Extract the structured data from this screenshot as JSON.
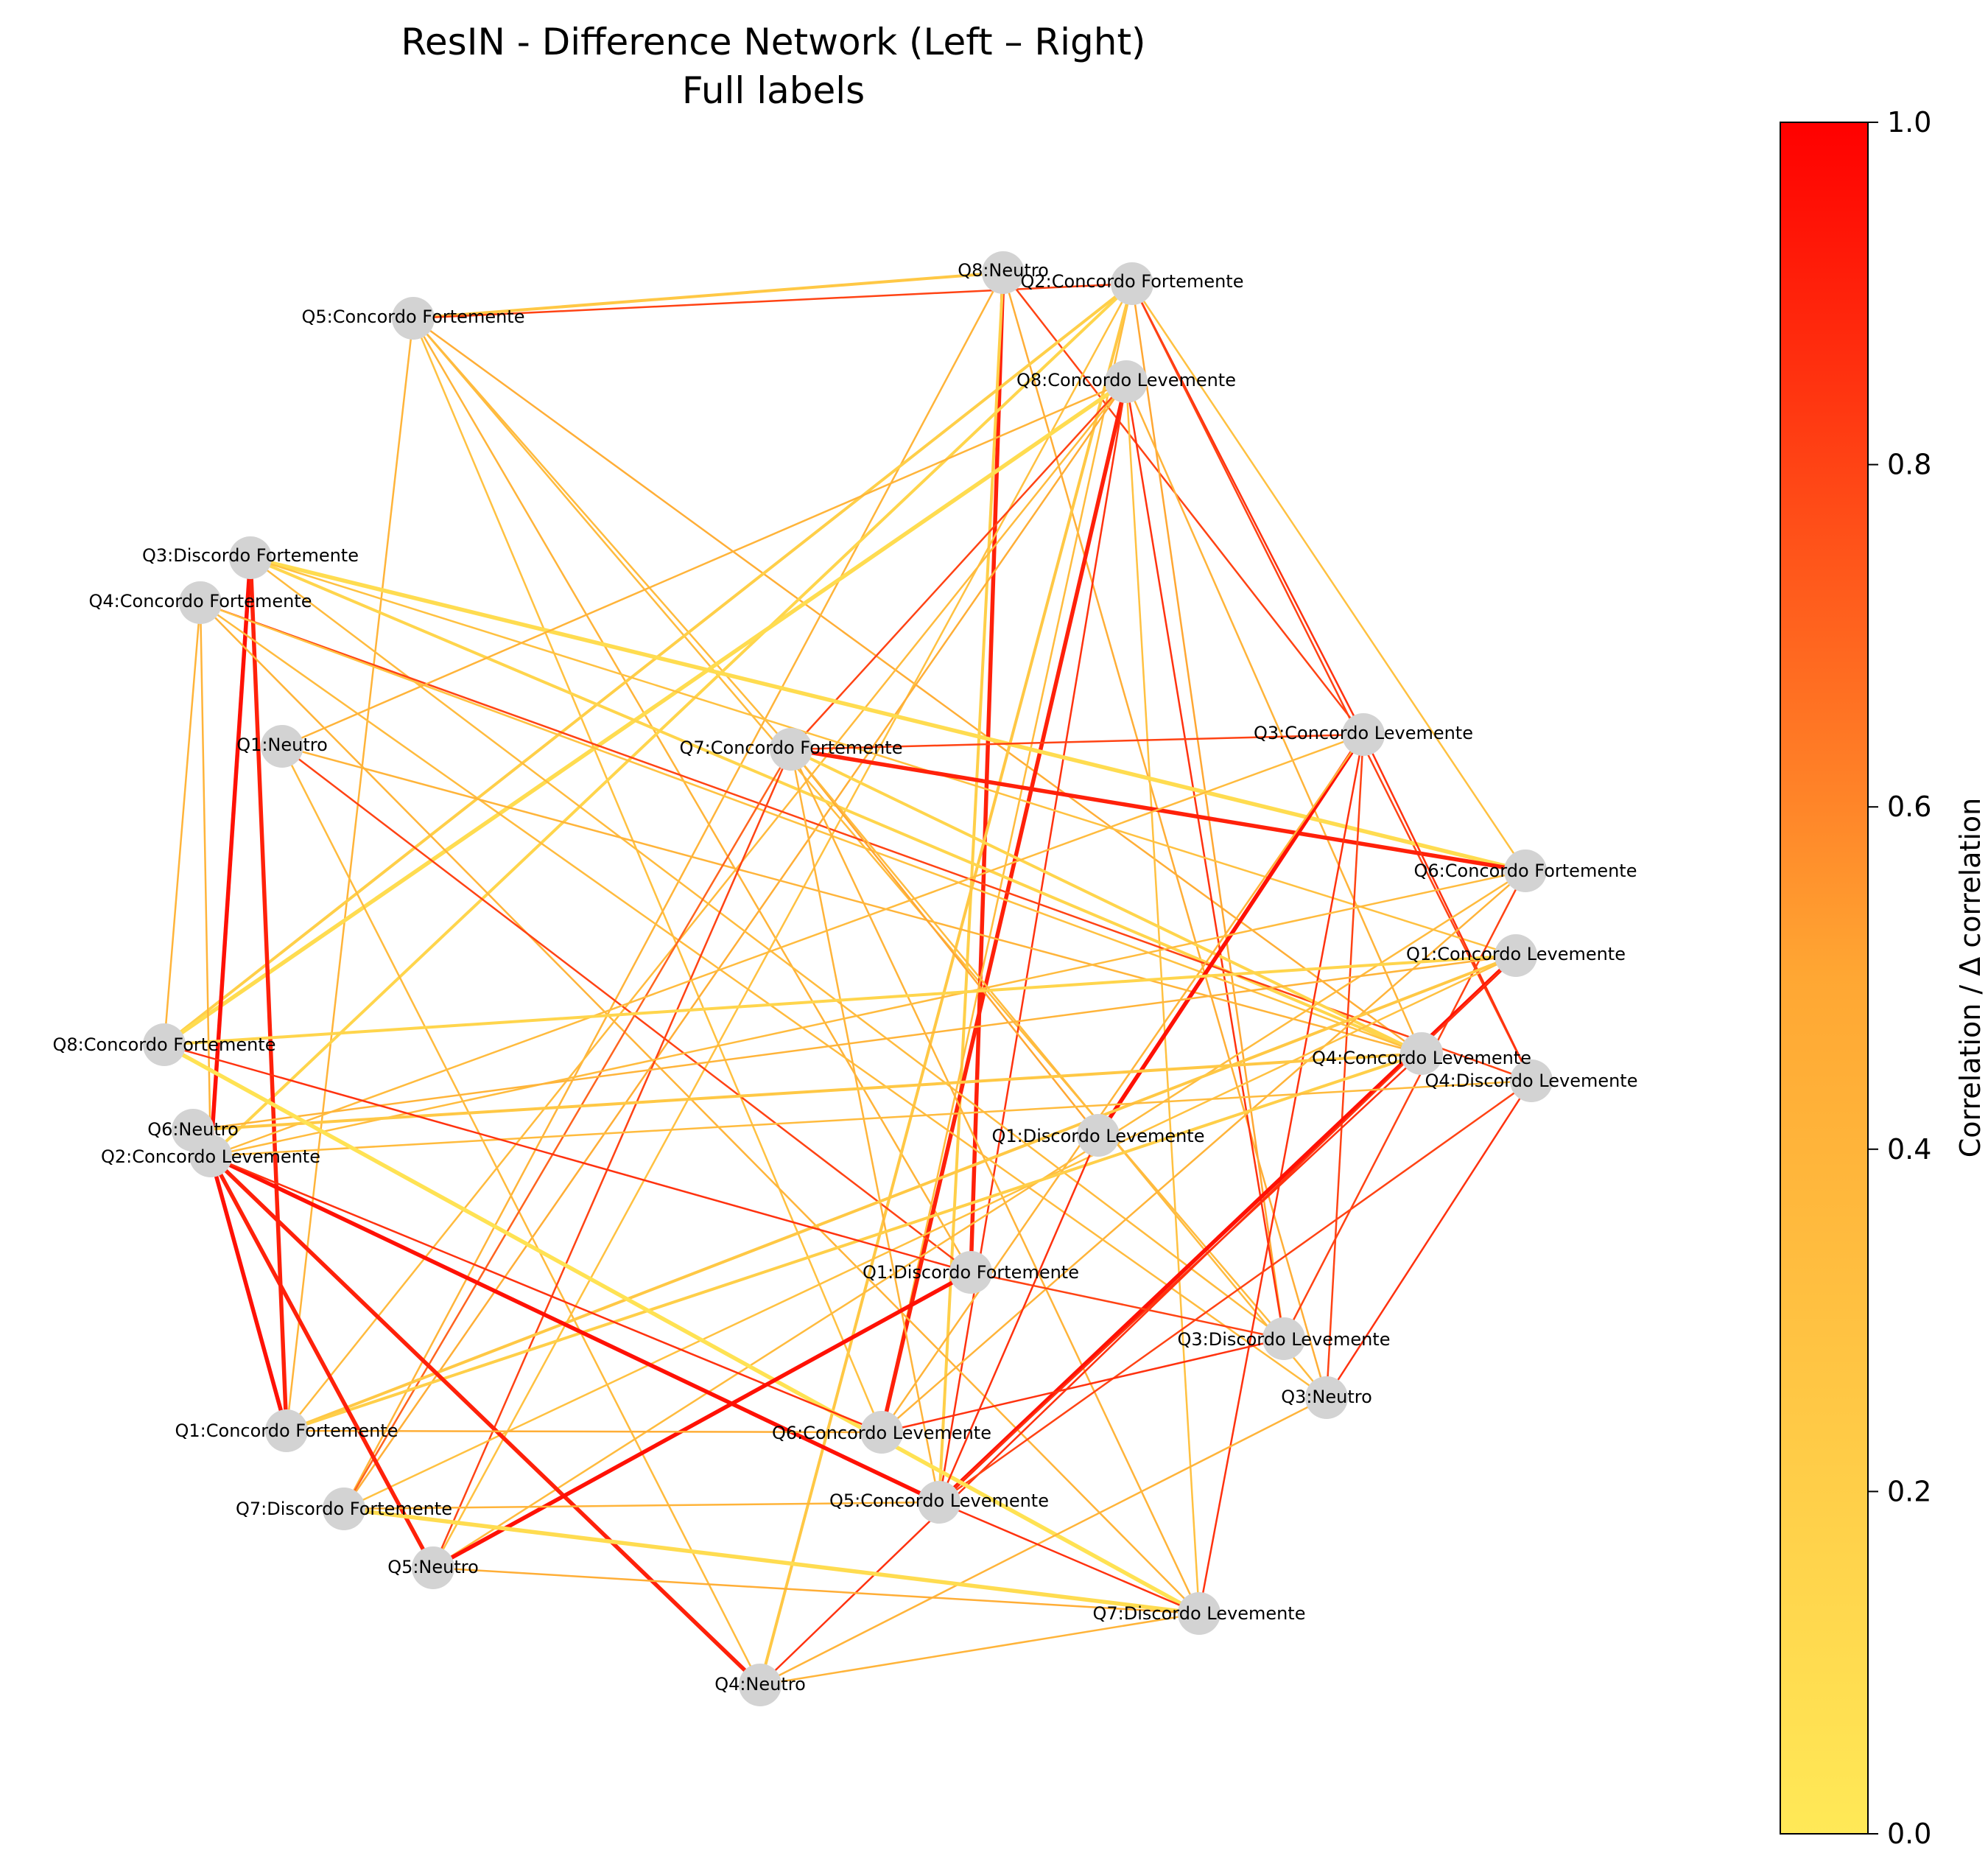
{
  "title_line1": "ResIN - Difference Network (Left – Right)",
  "title_line2": "Full labels",
  "colorbar": {
    "label": "Correlation / Δ correlation",
    "ticks": [
      "0.0",
      "0.2",
      "0.4",
      "0.6",
      "0.8",
      "1.0"
    ],
    "colors": [
      "#ffe957",
      "#ffa733",
      "#ff0000"
    ]
  },
  "chart_data": {
    "type": "network",
    "nodes": [
      {
        "id": "Q8:Neutro"
      },
      {
        "id": "Q2:Concordo Fortemente"
      },
      {
        "id": "Q5:Concordo Fortemente"
      },
      {
        "id": "Q8:Concordo Levemente"
      },
      {
        "id": "Q3:Discordo Fortemente"
      },
      {
        "id": "Q4:Concordo Fortemente"
      },
      {
        "id": "Q1:Neutro"
      },
      {
        "id": "Q7:Concordo Fortemente"
      },
      {
        "id": "Q3:Concordo Levemente"
      },
      {
        "id": "Q6:Concordo Fortemente"
      },
      {
        "id": "Q1:Concordo Levemente"
      },
      {
        "id": "Q4:Concordo Levemente"
      },
      {
        "id": "Q4:Discordo Levemente"
      },
      {
        "id": "Q8:Concordo Fortemente"
      },
      {
        "id": "Q6:Neutro"
      },
      {
        "id": "Q2:Concordo Levemente"
      },
      {
        "id": "Q1:Discordo Levemente"
      },
      {
        "id": "Q1:Discordo Fortemente"
      },
      {
        "id": "Q3:Discordo Levemente"
      },
      {
        "id": "Q3:Neutro"
      },
      {
        "id": "Q1:Concordo Fortemente"
      },
      {
        "id": "Q6:Concordo Levemente"
      },
      {
        "id": "Q7:Discordo Fortemente"
      },
      {
        "id": "Q5:Concordo Levemente"
      },
      {
        "id": "Q5:Neutro"
      },
      {
        "id": "Q7:Discordo Levemente"
      },
      {
        "id": "Q4:Neutro"
      }
    ],
    "edges": [
      {
        "source": "Q5:Concordo Fortemente",
        "target": "Q8:Neutro",
        "weight": 0.25
      },
      {
        "source": "Q5:Concordo Fortemente",
        "target": "Q2:Concordo Fortemente",
        "weight": 0.8
      },
      {
        "source": "Q5:Concordo Fortemente",
        "target": "Q7:Concordo Fortemente",
        "weight": 0.35
      },
      {
        "source": "Q5:Concordo Fortemente",
        "target": "Q1:Concordo Fortemente",
        "weight": 0.4
      },
      {
        "source": "Q5:Concordo Fortemente",
        "target": "Q3:Discordo Levemente",
        "weight": 0.35
      },
      {
        "source": "Q5:Concordo Fortemente",
        "target": "Q1:Discordo Fortemente",
        "weight": 0.4
      },
      {
        "source": "Q5:Concordo Fortemente",
        "target": "Q6:Concordo Levemente",
        "weight": 0.3
      },
      {
        "source": "Q5:Concordo Fortemente",
        "target": "Q4:Concordo Levemente",
        "weight": 0.45
      },
      {
        "source": "Q8:Neutro",
        "target": "Q1:Discordo Fortemente",
        "weight": 0.9
      },
      {
        "source": "Q8:Neutro",
        "target": "Q3:Concordo Levemente",
        "weight": 0.8
      },
      {
        "source": "Q8:Neutro",
        "target": "Q7:Discordo Fortemente",
        "weight": 0.4
      },
      {
        "source": "Q8:Neutro",
        "target": "Q5:Concordo Levemente",
        "weight": 0.2
      },
      {
        "source": "Q8:Neutro",
        "target": "Q3:Neutro",
        "weight": 0.45
      },
      {
        "source": "Q2:Concordo Fortemente",
        "target": "Q2:Concordo Levemente",
        "weight": 0.15
      },
      {
        "source": "Q2:Concordo Fortemente",
        "target": "Q8:Concordo Fortemente",
        "weight": 0.2
      },
      {
        "source": "Q2:Concordo Fortemente",
        "target": "Q3:Concordo Levemente",
        "weight": 0.85
      },
      {
        "source": "Q2:Concordo Fortemente",
        "target": "Q6:Concordo Fortemente",
        "weight": 0.3
      },
      {
        "source": "Q2:Concordo Fortemente",
        "target": "Q4:Discordo Levemente",
        "weight": 0.8
      },
      {
        "source": "Q2:Concordo Fortemente",
        "target": "Q3:Discordo Levemente",
        "weight": 0.5
      },
      {
        "source": "Q2:Concordo Fortemente",
        "target": "Q6:Concordo Levemente",
        "weight": 0.35
      },
      {
        "source": "Q2:Concordo Fortemente",
        "target": "Q5:Neutro",
        "weight": 0.3
      },
      {
        "source": "Q2:Concordo Fortemente",
        "target": "Q4:Neutro",
        "weight": 0.25
      },
      {
        "source": "Q8:Concordo Levemente",
        "target": "Q8:Concordo Fortemente",
        "weight": 0.1
      },
      {
        "source": "Q8:Concordo Levemente",
        "target": "Q6:Concordo Levemente",
        "weight": 0.9
      },
      {
        "source": "Q8:Concordo Levemente",
        "target": "Q5:Concordo Levemente",
        "weight": 0.85
      },
      {
        "source": "Q8:Concordo Levemente",
        "target": "Q7:Discordo Levemente",
        "weight": 0.3
      },
      {
        "source": "Q8:Concordo Levemente",
        "target": "Q1:Concordo Fortemente",
        "weight": 0.35
      },
      {
        "source": "Q8:Concordo Levemente",
        "target": "Q7:Concordo Fortemente",
        "weight": 0.8
      },
      {
        "source": "Q8:Concordo Levemente",
        "target": "Q3:Discordo Levemente",
        "weight": 0.85
      },
      {
        "source": "Q8:Concordo Levemente",
        "target": "Q4:Concordo Levemente",
        "weight": 0.4
      },
      {
        "source": "Q8:Concordo Levemente",
        "target": "Q7:Discordo Fortemente",
        "weight": 0.45
      },
      {
        "source": "Q3:Discordo Fortemente",
        "target": "Q2:Concordo Levemente",
        "weight": 0.95
      },
      {
        "source": "Q3:Discordo Fortemente",
        "target": "Q1:Concordo Fortemente",
        "weight": 0.9
      },
      {
        "source": "Q3:Discordo Fortemente",
        "target": "Q4:Concordo Levemente",
        "weight": 0.15
      },
      {
        "source": "Q3:Discordo Fortemente",
        "target": "Q6:Concordo Fortemente",
        "weight": 0.1
      },
      {
        "source": "Q3:Discordo Fortemente",
        "target": "Q3:Discordo Levemente",
        "weight": 0.35
      },
      {
        "source": "Q3:Discordo Fortemente",
        "target": "Q1:Concordo Levemente",
        "weight": 0.3
      },
      {
        "source": "Q4:Concordo Fortemente",
        "target": "Q8:Concordo Fortemente",
        "weight": 0.4
      },
      {
        "source": "Q4:Concordo Fortemente",
        "target": "Q4:Discordo Levemente",
        "weight": 0.8
      },
      {
        "source": "Q4:Concordo Fortemente",
        "target": "Q3:Neutro",
        "weight": 0.35
      },
      {
        "source": "Q4:Concordo Fortemente",
        "target": "Q7:Discordo Levemente",
        "weight": 0.4
      },
      {
        "source": "Q4:Concordo Fortemente",
        "target": "Q4:Concordo Levemente",
        "weight": 0.3
      },
      {
        "source": "Q4:Concordo Fortemente",
        "target": "Q2:Concordo Levemente",
        "weight": 0.4
      },
      {
        "source": "Q1:Neutro",
        "target": "Q8:Concordo Levemente",
        "weight": 0.4
      },
      {
        "source": "Q1:Neutro",
        "target": "Q1:Discordo Fortemente",
        "weight": 0.8
      },
      {
        "source": "Q1:Neutro",
        "target": "Q4:Concordo Levemente",
        "weight": 0.4
      },
      {
        "source": "Q1:Neutro",
        "target": "Q4:Neutro",
        "weight": 0.35
      },
      {
        "source": "Q7:Concordo Fortemente",
        "target": "Q3:Concordo Levemente",
        "weight": 0.8
      },
      {
        "source": "Q7:Concordo Fortemente",
        "target": "Q6:Concordo Fortemente",
        "weight": 0.9
      },
      {
        "source": "Q7:Concordo Fortemente",
        "target": "Q4:Concordo Levemente",
        "weight": 0.15
      },
      {
        "source": "Q7:Concordo Fortemente",
        "target": "Q1:Discordo Levemente",
        "weight": 0.5
      },
      {
        "source": "Q7:Concordo Fortemente",
        "target": "Q3:Neutro",
        "weight": 0.35
      },
      {
        "source": "Q7:Concordo Fortemente",
        "target": "Q5:Concordo Levemente",
        "weight": 0.4
      },
      {
        "source": "Q7:Concordo Fortemente",
        "target": "Q5:Neutro",
        "weight": 0.8
      },
      {
        "source": "Q7:Concordo Fortemente",
        "target": "Q7:Discordo Fortemente",
        "weight": 0.7
      },
      {
        "source": "Q7:Concordo Fortemente",
        "target": "Q7:Discordo Levemente",
        "weight": 0.4
      },
      {
        "source": "Q3:Concordo Levemente",
        "target": "Q1:Discordo Levemente",
        "weight": 0.95
      },
      {
        "source": "Q3:Concordo Levemente",
        "target": "Q6:Concordo Levemente",
        "weight": 0.4
      },
      {
        "source": "Q3:Concordo Levemente",
        "target": "Q2:Concordo Levemente",
        "weight": 0.35
      },
      {
        "source": "Q3:Concordo Levemente",
        "target": "Q7:Discordo Levemente",
        "weight": 0.85
      },
      {
        "source": "Q3:Concordo Levemente",
        "target": "Q4:Discordo Levemente",
        "weight": 0.85
      },
      {
        "source": "Q3:Concordo Levemente",
        "target": "Q3:Neutro",
        "weight": 0.8
      },
      {
        "source": "Q6:Concordo Fortemente",
        "target": "Q2:Concordo Levemente",
        "weight": 0.35
      },
      {
        "source": "Q6:Concordo Fortemente",
        "target": "Q6:Concordo Levemente",
        "weight": 0.4
      },
      {
        "source": "Q6:Concordo Fortemente",
        "target": "Q5:Neutro",
        "weight": 0.35
      },
      {
        "source": "Q6:Concordo Fortemente",
        "target": "Q3:Discordo Levemente",
        "weight": 0.8
      },
      {
        "source": "Q1:Concordo Levemente",
        "target": "Q8:Concordo Fortemente",
        "weight": 0.15
      },
      {
        "source": "Q1:Concordo Levemente",
        "target": "Q5:Concordo Levemente",
        "weight": 0.95
      },
      {
        "source": "Q1:Concordo Levemente",
        "target": "Q7:Discordo Fortemente",
        "weight": 0.3
      },
      {
        "source": "Q1:Concordo Levemente",
        "target": "Q1:Concordo Fortemente",
        "weight": 0.25
      },
      {
        "source": "Q1:Concordo Levemente",
        "target": "Q6:Neutro",
        "weight": 0.4
      },
      {
        "source": "Q1:Concordo Levemente",
        "target": "Q4:Neutro",
        "weight": 0.85
      },
      {
        "source": "Q4:Concordo Levemente",
        "target": "Q6:Neutro",
        "weight": 0.25
      },
      {
        "source": "Q4:Concordo Levemente",
        "target": "Q1:Concordo Fortemente",
        "weight": 0.2
      },
      {
        "source": "Q4:Concordo Levemente",
        "target": "Q5:Concordo Levemente",
        "weight": 0.85
      },
      {
        "source": "Q4:Discordo Levemente",
        "target": "Q2:Concordo Levemente",
        "weight": 0.35
      },
      {
        "source": "Q4:Discordo Levemente",
        "target": "Q3:Neutro",
        "weight": 0.85
      },
      {
        "source": "Q4:Discordo Levemente",
        "target": "Q5:Concordo Levemente",
        "weight": 0.8
      },
      {
        "source": "Q8:Concordo Fortemente",
        "target": "Q7:Discordo Levemente",
        "weight": 0.05
      },
      {
        "source": "Q8:Concordo Fortemente",
        "target": "Q1:Discordo Fortemente",
        "weight": 0.85
      },
      {
        "source": "Q2:Concordo Levemente",
        "target": "Q5:Concordo Levemente",
        "weight": 0.95
      },
      {
        "source": "Q2:Concordo Levemente",
        "target": "Q1:Concordo Fortemente",
        "weight": 0.95
      },
      {
        "source": "Q2:Concordo Levemente",
        "target": "Q5:Neutro",
        "weight": 0.9
      },
      {
        "source": "Q2:Concordo Levemente",
        "target": "Q4:Neutro",
        "weight": 0.9
      },
      {
        "source": "Q2:Concordo Levemente",
        "target": "Q6:Concordo Levemente",
        "weight": 0.85
      },
      {
        "source": "Q1:Discordo Fortemente",
        "target": "Q5:Neutro",
        "weight": 0.95
      },
      {
        "source": "Q1:Discordo Fortemente",
        "target": "Q3:Discordo Levemente",
        "weight": 0.8
      },
      {
        "source": "Q1:Discordo Levemente",
        "target": "Q5:Concordo Levemente",
        "weight": 0.85
      },
      {
        "source": "Q3:Discordo Levemente",
        "target": "Q6:Concordo Levemente",
        "weight": 0.85
      },
      {
        "source": "Q3:Neutro",
        "target": "Q4:Neutro",
        "weight": 0.4
      },
      {
        "source": "Q1:Concordo Fortemente",
        "target": "Q6:Concordo Levemente",
        "weight": 0.45
      },
      {
        "source": "Q7:Discordo Fortemente",
        "target": "Q5:Concordo Levemente",
        "weight": 0.4
      },
      {
        "source": "Q7:Discordo Fortemente",
        "target": "Q7:Discordo Levemente",
        "weight": 0.1
      },
      {
        "source": "Q5:Neutro",
        "target": "Q7:Discordo Levemente",
        "weight": 0.45
      },
      {
        "source": "Q5:Concordo Levemente",
        "target": "Q7:Discordo Levemente",
        "weight": 0.85
      },
      {
        "source": "Q4:Neutro",
        "target": "Q7:Discordo Levemente",
        "weight": 0.4
      }
    ],
    "colormap_range": [
      0.0,
      1.0
    ]
  }
}
